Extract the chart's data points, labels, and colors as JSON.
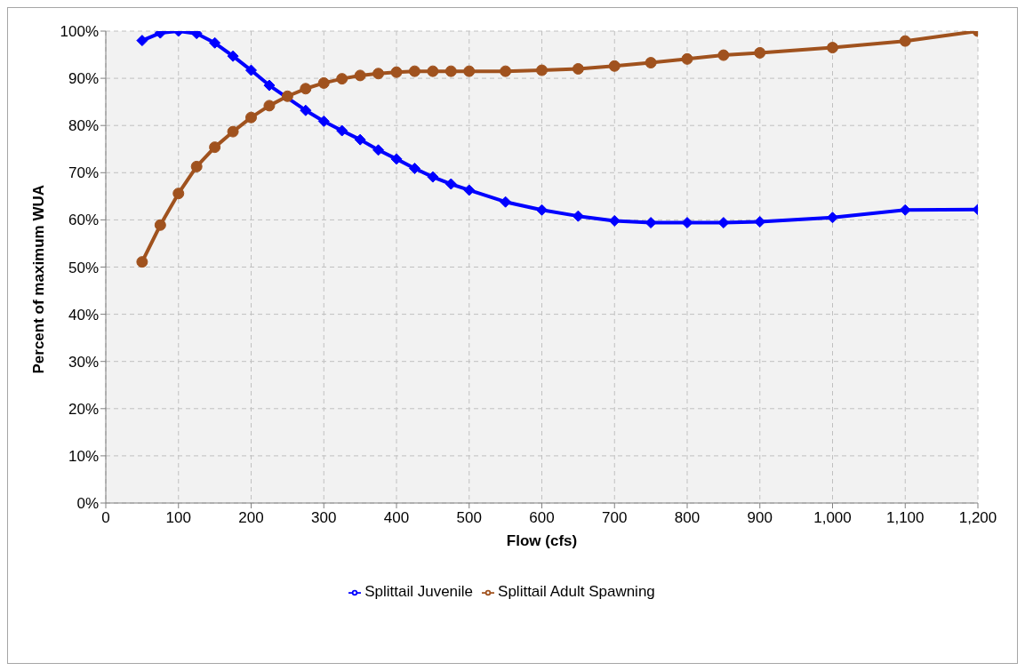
{
  "chart_data": {
    "type": "line",
    "xlabel": "Flow (cfs)",
    "ylabel": "Percent of maximum WUA",
    "x": [
      50,
      75,
      100,
      125,
      150,
      175,
      200,
      225,
      250,
      275,
      300,
      325,
      350,
      375,
      400,
      425,
      450,
      475,
      500,
      550,
      600,
      650,
      700,
      750,
      800,
      850,
      900,
      1000,
      1100,
      1200
    ],
    "series": [
      {
        "name": "Splittail Juvenile",
        "color": "#0000ff",
        "marker": "diamond",
        "values": [
          98.0,
          99.6,
          100,
          99.5,
          97.5,
          94.7,
          91.7,
          88.5,
          null,
          83.2,
          80.9,
          78.9,
          77.0,
          74.8,
          72.9,
          70.9,
          69.1,
          67.6,
          66.3,
          63.8,
          62.1,
          60.8,
          59.8,
          59.4,
          59.4,
          59.4,
          59.6,
          60.5,
          62.1,
          62.2
        ]
      },
      {
        "name": "Splittail Adult Spawning",
        "color": "#a0521e",
        "marker": "circle",
        "values": [
          51.1,
          58.9,
          65.6,
          71.3,
          75.4,
          78.7,
          81.7,
          84.2,
          86.2,
          87.8,
          89.0,
          89.9,
          90.6,
          91.0,
          91.3,
          91.5,
          91.5,
          91.5,
          91.5,
          91.5,
          91.7,
          92.0,
          92.6,
          93.3,
          94.1,
          94.9,
          95.4,
          96.5,
          97.9,
          100
        ]
      }
    ],
    "xlim": [
      0,
      1200
    ],
    "xticks": [
      0,
      100,
      200,
      300,
      400,
      500,
      600,
      700,
      800,
      900,
      {
        "value": 1000,
        "label": "1,000"
      },
      {
        "value": 1100,
        "label": "1,100"
      },
      {
        "value": 1200,
        "label": "1,200"
      }
    ],
    "ylim": [
      0,
      100
    ],
    "yticks": [
      {
        "value": 0,
        "label": "0%"
      },
      {
        "value": 10,
        "label": "10%"
      },
      {
        "value": 20,
        "label": "20%"
      },
      {
        "value": 30,
        "label": "30%"
      },
      {
        "value": 40,
        "label": "40%"
      },
      {
        "value": 50,
        "label": "50%"
      },
      {
        "value": 60,
        "label": "60%"
      },
      {
        "value": 70,
        "label": "70%"
      },
      {
        "value": 80,
        "label": "80%"
      },
      {
        "value": 90,
        "label": "90%"
      },
      {
        "value": 100,
        "label": "100%"
      }
    ],
    "grid": true,
    "legend": "bottom",
    "line_style": "solid"
  }
}
